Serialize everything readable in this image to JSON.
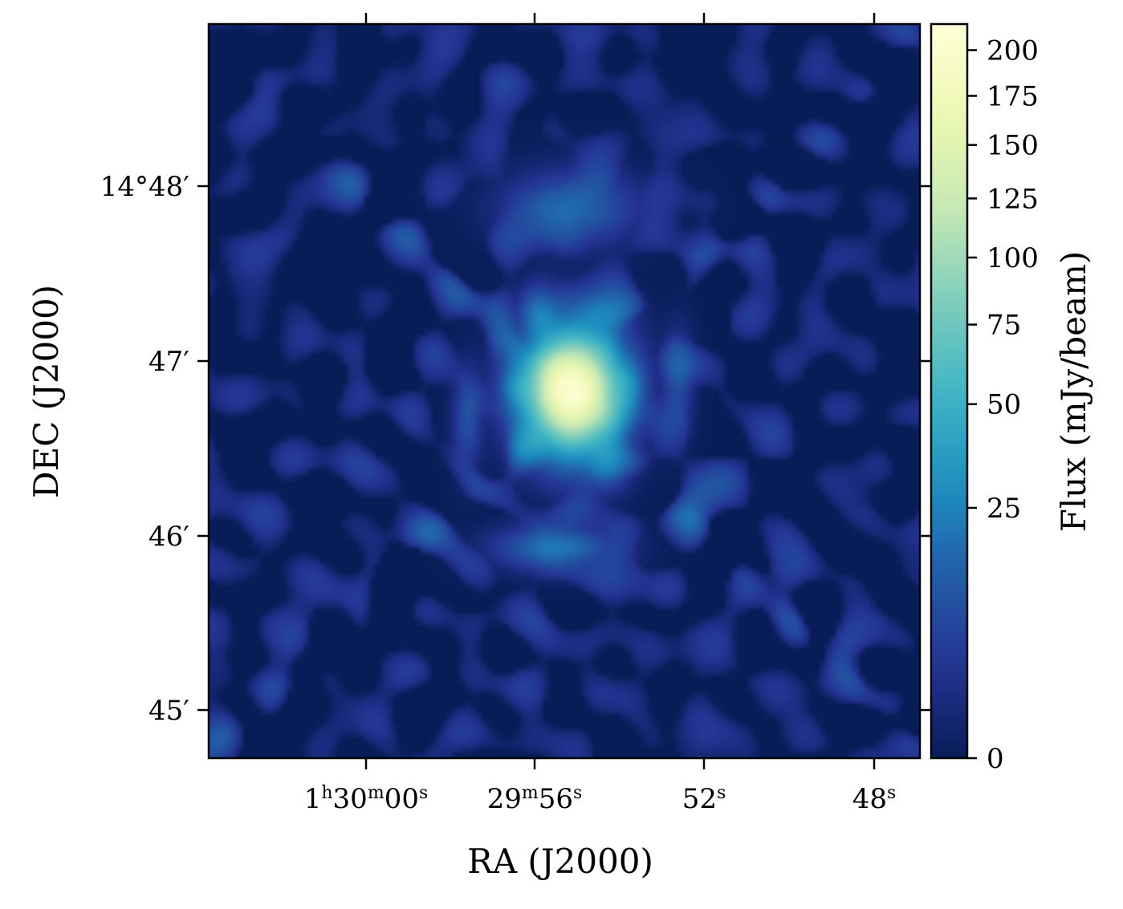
{
  "chart_data": {
    "type": "heatmap",
    "title": "",
    "xlabel": "RA (J2000)",
    "ylabel": "DEC (J2000)",
    "colorbar_label": "Flux (mJy/beam)",
    "colormap": "YlGnBu",
    "color_scale": "sqrt",
    "colorbar_range": [
      0,
      215
    ],
    "colorbar_ticks": [
      0,
      25,
      50,
      75,
      100,
      125,
      150,
      175,
      200
    ],
    "colorbar_tick_labels": [
      "0",
      "25",
      "50",
      "75",
      "100",
      "125",
      "150",
      "175",
      "200"
    ],
    "x_ticks": [
      {
        "h": "1",
        "m": "30",
        "s": "00",
        "label_parts": [
          "1",
          "h",
          "30",
          "m",
          "00",
          "s"
        ]
      },
      {
        "m": "29",
        "s": "56",
        "label_parts": [
          "29",
          "m",
          "56",
          "s"
        ]
      },
      {
        "s": "52",
        "label_parts": [
          "52",
          "s"
        ]
      },
      {
        "s": "48",
        "label_parts": [
          "48",
          "s"
        ]
      }
    ],
    "y_ticks": [
      {
        "label": "14°48′"
      },
      {
        "label": "47′"
      },
      {
        "label": "46′"
      },
      {
        "label": "45′"
      }
    ],
    "peak_flux": 215,
    "colors": {
      "background": "#0b1f5e",
      "peak": "#ffffd9"
    }
  }
}
